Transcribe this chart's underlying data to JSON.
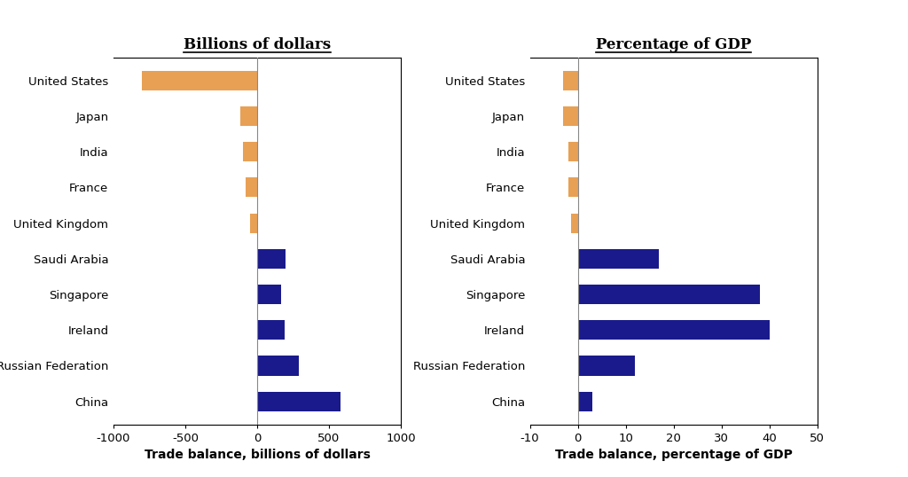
{
  "countries": [
    "United States",
    "Japan",
    "India",
    "France",
    "United Kingdom",
    "Saudi Arabia",
    "Singapore",
    "Ireland",
    "Russian Federation",
    "China"
  ],
  "billions": [
    -800,
    -120,
    -100,
    -80,
    -50,
    200,
    170,
    190,
    290,
    580
  ],
  "pct_gdp": [
    -3.0,
    -3.0,
    -2.0,
    -2.0,
    -1.5,
    17.0,
    38.0,
    40.0,
    12.0,
    3.0
  ],
  "deficit_color": "#E8A055",
  "surplus_color": "#1A1A8C",
  "title_left": "Billions of dollars",
  "title_right": "Percentage of GDP",
  "xlabel_left": "Trade balance, billions of dollars",
  "xlabel_right": "Trade balance, percentage of GDP",
  "xlim_left": [
    -1000,
    1000
  ],
  "xlim_right": [
    -10,
    50
  ],
  "xticks_left": [
    -1000,
    -500,
    0,
    500,
    1000
  ],
  "xticks_right": [
    -10,
    0,
    10,
    20,
    30,
    40,
    50
  ],
  "bar_height": 0.55,
  "title_fontsize": 12,
  "label_fontsize": 9.5,
  "xlabel_fontsize": 10
}
